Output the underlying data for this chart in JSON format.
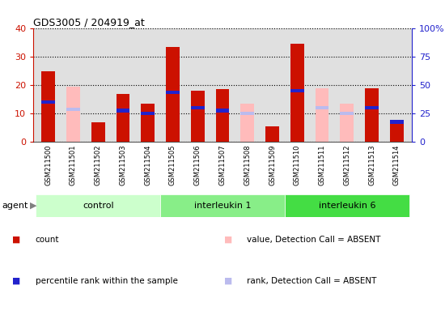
{
  "title": "GDS3005 / 204919_at",
  "samples": [
    "GSM211500",
    "GSM211501",
    "GSM211502",
    "GSM211503",
    "GSM211504",
    "GSM211505",
    "GSM211506",
    "GSM211507",
    "GSM211508",
    "GSM211509",
    "GSM211510",
    "GSM211511",
    "GSM211512",
    "GSM211513",
    "GSM211514"
  ],
  "count_values": [
    25,
    0,
    7,
    17,
    13.5,
    33.5,
    18,
    18.5,
    0,
    5.5,
    34.5,
    0,
    0,
    19,
    7.5
  ],
  "percentile_values": [
    35,
    0,
    0,
    27.5,
    25,
    43.75,
    30,
    27.5,
    0,
    0,
    45,
    0,
    0,
    30,
    17.5
  ],
  "absent_value_values": [
    0,
    19.5,
    0,
    0,
    0,
    0,
    0,
    0,
    13.5,
    0,
    0,
    19,
    13.5,
    0,
    0
  ],
  "absent_rank_values": [
    0,
    28.75,
    0,
    0,
    0,
    0,
    0,
    0,
    25,
    0,
    0,
    30,
    25,
    0,
    0
  ],
  "groups": [
    {
      "name": "control",
      "start": 0,
      "end": 4
    },
    {
      "name": "interleukin 1",
      "start": 5,
      "end": 9
    },
    {
      "name": "interleukin 6",
      "start": 10,
      "end": 14
    }
  ],
  "group_colors": [
    "#ccffcc",
    "#88ee88",
    "#44dd44"
  ],
  "ylim_left": [
    0,
    40
  ],
  "ylim_right": [
    0,
    100
  ],
  "yticks_left": [
    0,
    10,
    20,
    30,
    40
  ],
  "yticks_right": [
    0,
    25,
    50,
    75,
    100
  ],
  "ytick_labels_right": [
    "0",
    "25",
    "50",
    "75",
    "100%"
  ],
  "color_count": "#cc1100",
  "color_percentile": "#2222cc",
  "color_absent_value": "#ffbbbb",
  "color_absent_rank": "#bbbbee",
  "bar_width": 0.55,
  "background_plot": "#e0e0e0",
  "left_tick_color": "#cc1100",
  "right_tick_color": "#2222cc",
  "percentile_bar_height": 1.2
}
